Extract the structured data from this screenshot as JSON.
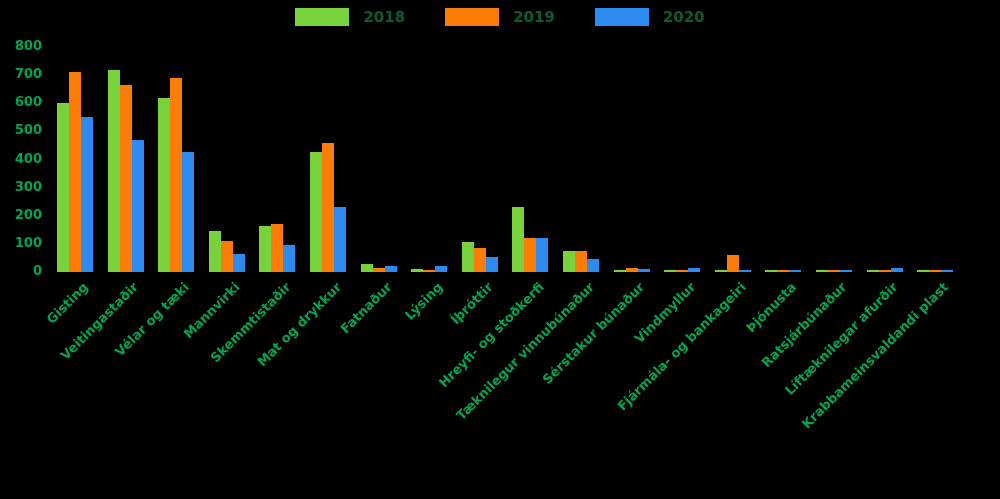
{
  "chart_data": {
    "type": "bar",
    "title": "",
    "xlabel": "",
    "ylabel": "",
    "ylim": [
      0,
      800
    ],
    "yticks": [
      0,
      100,
      200,
      300,
      400,
      500,
      600,
      700,
      800
    ],
    "grid": false,
    "background": "black",
    "legend_position": "top-center",
    "categories": [
      "Gisting",
      "Veitingastaðir",
      "Vélar og tæki",
      "Mannvirki",
      "Skemmtistaðir",
      "Mat og drykkur",
      "Fatnaður",
      "Lýsing",
      "Íþróttir",
      "Hreyfi- og stoðkerfi",
      "Tæknilegur vinnubúnaður",
      "Sérstakur búnaður",
      "Vindmyllur",
      "Fjármála- og bankageiri",
      "Þjónusta",
      "Ratsjárbúnaður",
      "Líftæknilegar afurðir",
      "Krabbameinsvaldandi plast"
    ],
    "series": [
      {
        "name": "2018",
        "color": "#77d23b",
        "values": [
          600,
          720,
          620,
          145,
          165,
          425,
          30,
          10,
          105,
          230,
          75,
          7,
          4,
          3,
          2,
          2,
          3,
          1
        ]
      },
      {
        "name": "2019",
        "color": "#fb7d07",
        "values": [
          710,
          665,
          690,
          110,
          170,
          460,
          15,
          7,
          85,
          120,
          75,
          14,
          2,
          60,
          3,
          3,
          4,
          2
        ]
      },
      {
        "name": "2020",
        "color": "#2d8bf0",
        "values": [
          550,
          470,
          425,
          65,
          95,
          230,
          20,
          20,
          55,
          120,
          45,
          10,
          14,
          5,
          2,
          2,
          14,
          8
        ]
      }
    ]
  },
  "legend": {
    "items": [
      {
        "label": "2018",
        "color": "#77d23b"
      },
      {
        "label": "2019",
        "color": "#fb7d07"
      },
      {
        "label": "2020",
        "color": "#2d8bf0"
      }
    ]
  },
  "colors": {
    "background": "#000000",
    "axis_text": "#00a550",
    "legend_text": "#0d5c2e"
  }
}
